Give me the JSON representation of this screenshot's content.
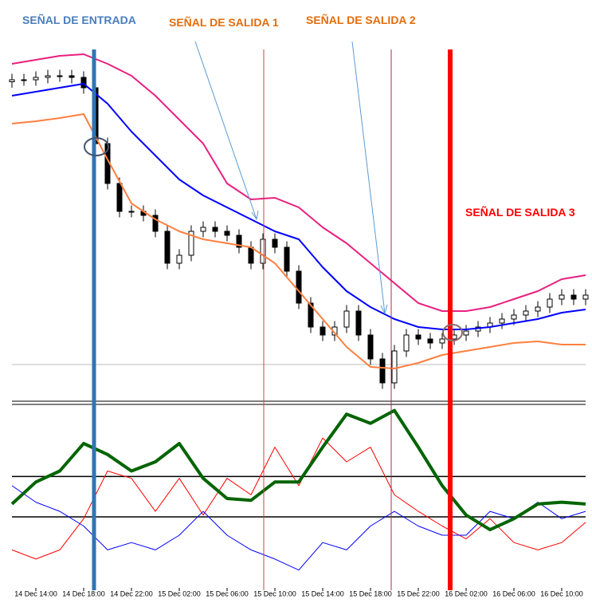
{
  "annotations": [
    {
      "text": "SEÑAL DE ENTRADA",
      "color": "#4a7ebb"
    },
    {
      "text": "SEÑAL DE SALIDA 1",
      "color": "#e46c0a"
    },
    {
      "text": "SEÑAL DE SALIDA 2",
      "color": "#e46c0a"
    },
    {
      "text": "SEÑAL DE SALIDA 3",
      "color": "#ff0000"
    }
  ],
  "chart_data": [
    {
      "type": "candlestick",
      "xlim": [
        -2,
        46
      ],
      "ylim": [
        0,
        89
      ],
      "x": [
        -2,
        -1,
        0,
        1,
        2,
        3,
        4,
        5,
        6,
        7,
        8,
        9,
        10,
        11,
        12,
        13,
        14,
        15,
        16,
        17,
        18,
        19,
        20,
        21,
        22,
        23,
        24,
        25,
        26,
        27,
        28,
        29,
        30,
        31,
        32,
        33,
        34,
        35,
        36,
        37,
        38,
        39,
        40,
        41,
        42,
        43,
        44,
        45,
        46
      ],
      "open": [
        80.5,
        81,
        81,
        81.6,
        82,
        82,
        81.6,
        79,
        65,
        55,
        48,
        48,
        47,
        43,
        35,
        37,
        43,
        44,
        43,
        42,
        39,
        35,
        41,
        39,
        33,
        25,
        19,
        17,
        19,
        23,
        17,
        11,
        5,
        13,
        17,
        16,
        15,
        16,
        17,
        18,
        19,
        20,
        21,
        22,
        23,
        24,
        26,
        27,
        26
      ],
      "high": [
        82.5,
        82.5,
        83.1,
        83.5,
        83.5,
        83.5,
        83.1,
        80.5,
        66.5,
        56.5,
        49.5,
        49.5,
        48.5,
        44.5,
        38.5,
        44.5,
        45.5,
        45.5,
        44.5,
        43.5,
        40.5,
        42.5,
        42.5,
        40.5,
        34.5,
        26.5,
        20.5,
        20.5,
        24.5,
        24.5,
        18.5,
        12.5,
        14.5,
        18.5,
        18.5,
        17.5,
        17.5,
        18.5,
        19.5,
        20.5,
        21.5,
        22.5,
        23.5,
        24.5,
        25.5,
        27.5,
        28.5,
        28.5,
        28.5
      ],
      "low": [
        79,
        79.5,
        79.5,
        80.1,
        80.5,
        80.1,
        77.5,
        63.5,
        53.5,
        46.5,
        46.5,
        45.5,
        41.5,
        33.5,
        33.5,
        35.5,
        41.5,
        41.5,
        40.5,
        37.5,
        33.5,
        33.5,
        37.5,
        31.5,
        23.5,
        17.5,
        15.5,
        15.5,
        17.5,
        15.5,
        9.5,
        3.5,
        3.5,
        11.5,
        14.5,
        13.5,
        13.5,
        14.5,
        15.5,
        16.5,
        17.5,
        18.5,
        19.5,
        20.5,
        21.5,
        22.5,
        24.5,
        24.5,
        24.5
      ],
      "close": [
        81,
        81,
        81.6,
        82,
        82,
        81.6,
        79,
        65,
        55,
        48,
        48,
        47,
        43,
        35,
        37,
        43,
        44,
        43,
        42,
        39,
        35,
        41,
        39,
        33,
        25,
        19,
        17,
        19,
        23,
        17,
        11,
        5,
        13,
        17,
        16,
        15,
        16,
        17,
        18,
        19,
        20,
        21,
        22,
        23,
        24,
        26,
        27,
        26,
        27
      ],
      "hlines": [
        9.6
      ],
      "series": [
        {
          "color": "#e8207f",
          "x": [
            -2,
            0,
            2,
            4,
            6,
            8,
            10,
            12,
            14,
            16,
            18,
            20,
            22,
            24,
            26,
            28,
            30,
            32,
            34,
            36,
            38,
            40,
            42,
            44,
            46
          ],
          "values": [
            85,
            86,
            87,
            87.4,
            85,
            82,
            77,
            71,
            65,
            55,
            51,
            51.4,
            49,
            44,
            40,
            35,
            30,
            25,
            23,
            23,
            24,
            26,
            28,
            31,
            32
          ]
        },
        {
          "color": "#0000ff",
          "x": [
            -2,
            0,
            2,
            4,
            6,
            8,
            10,
            12,
            14,
            16,
            18,
            20,
            22,
            24,
            26,
            28,
            30,
            32,
            34,
            36,
            38,
            40,
            42,
            44,
            46
          ],
          "values": [
            77,
            78,
            79,
            80,
            75,
            68,
            62,
            56,
            52,
            49,
            46,
            43,
            41,
            34,
            28,
            24,
            21,
            19,
            18.4,
            18.4,
            19,
            20,
            21,
            22.6,
            23.4
          ]
        },
        {
          "color": "#ff7f3f",
          "x": [
            -2,
            0,
            2,
            4,
            6,
            8,
            10,
            12,
            14,
            16,
            18,
            20,
            22,
            24,
            26,
            28,
            30,
            32,
            34,
            36,
            38,
            40,
            42,
            44,
            46
          ],
          "values": [
            70,
            70.6,
            71.4,
            72.4,
            61,
            50,
            46,
            43,
            41,
            40,
            39,
            35,
            28,
            21,
            14,
            9,
            8.6,
            10,
            12,
            13,
            14,
            15,
            15.4,
            14.6,
            14.6
          ]
        }
      ]
    },
    {
      "type": "line",
      "xlim": [
        -2,
        46
      ],
      "ylim": [
        0,
        100
      ],
      "x": [
        -2,
        0,
        2,
        4,
        6,
        8,
        10,
        12,
        14,
        16,
        18,
        20,
        22,
        24,
        26,
        28,
        30,
        32,
        34,
        36,
        38,
        40,
        42,
        44,
        46
      ],
      "xticks": [
        {
          "value": 0,
          "label": "14 Dec 14:00"
        },
        {
          "value": 4,
          "label": "14 Dec 18:00"
        },
        {
          "value": 8,
          "label": "14 Dec 22:00"
        },
        {
          "value": 12,
          "label": "15 Dec 02:00"
        },
        {
          "value": 16,
          "label": "15 Dec 06:00"
        },
        {
          "value": 20,
          "label": "15 Dec 10:00"
        },
        {
          "value": 24,
          "label": "15 Dec 14:00"
        },
        {
          "value": 28,
          "label": "15 Dec 18:00"
        },
        {
          "value": 32,
          "label": "15 Dec 22:00"
        },
        {
          "value": 36,
          "label": "16 Dec 02:00"
        },
        {
          "value": 40,
          "label": "16 Dec 06:00"
        },
        {
          "value": 44,
          "label": "16 Dec 10:00"
        }
      ],
      "hlines": [
        62,
        40
      ],
      "series": [
        {
          "color": "#ff0000",
          "values": [
            22,
            17,
            22,
            39,
            65,
            61,
            43,
            61,
            41,
            61,
            52,
            78,
            57,
            83,
            70,
            78,
            52,
            43,
            35,
            28,
            39,
            26,
            22,
            26,
            37
          ]
        },
        {
          "color": "#0000ff",
          "values": [
            57,
            48,
            43,
            35,
            22,
            26,
            22,
            30,
            43,
            30,
            22,
            17,
            11,
            26,
            22,
            35,
            43,
            35,
            30,
            30,
            43,
            39,
            48,
            39,
            43
          ]
        },
        {
          "color": "#006400",
          "values": [
            47,
            59,
            65,
            80,
            74,
            65,
            70,
            80,
            61,
            50,
            49,
            59,
            59,
            78,
            96,
            91,
            98,
            78,
            57,
            41,
            33,
            39,
            47,
            48,
            47
          ]
        }
      ]
    }
  ]
}
